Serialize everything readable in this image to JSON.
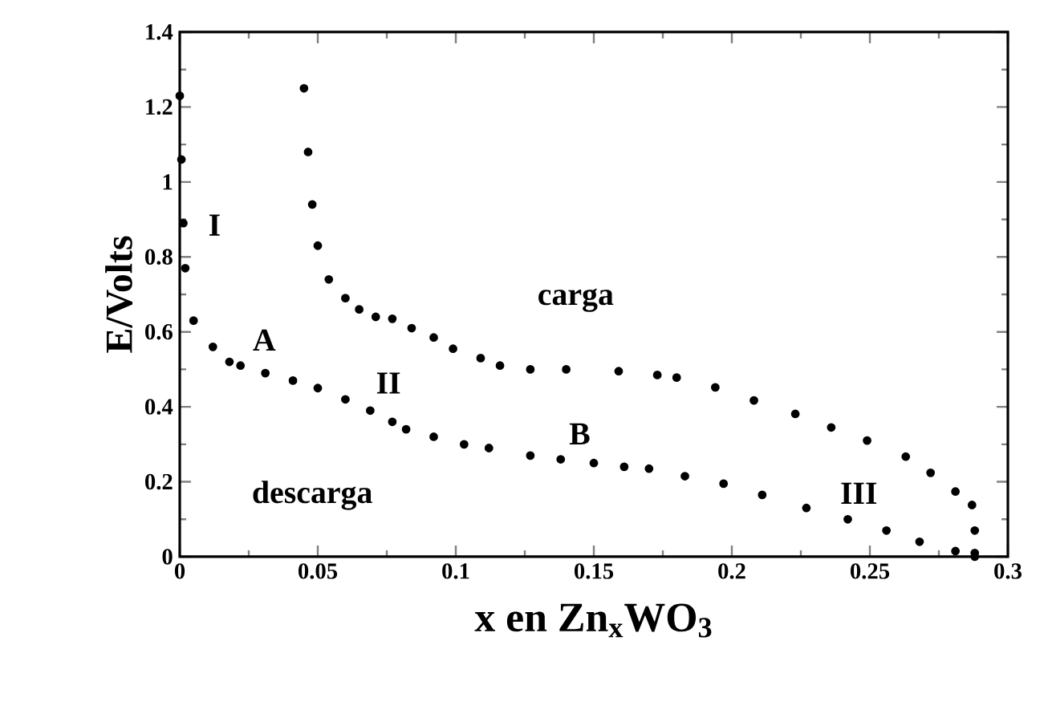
{
  "chart_data": {
    "type": "scatter",
    "xlabel": "x en Zn$_{x}$WO$_{3}$",
    "ylabel": "E/Volts",
    "xlim": [
      0,
      0.3
    ],
    "ylim": [
      0,
      1.4
    ],
    "xticks": [
      0,
      0.05,
      0.1,
      0.15,
      0.2,
      0.25,
      0.3
    ],
    "yticks": [
      0,
      0.2,
      0.4,
      0.6,
      0.8,
      1,
      1.2,
      1.4
    ],
    "marker": "circle",
    "grid": false,
    "series": [
      {
        "color": "#000000",
        "x": [
          0,
          0.0006,
          0.0013,
          0.002,
          0.005,
          0.012,
          0.018,
          0.022,
          0.031,
          0.041,
          0.05,
          0.06,
          0.069,
          0.077,
          0.082,
          0.092,
          0.103,
          0.112,
          0.127,
          0.138,
          0.15,
          0.161,
          0.17,
          0.183,
          0.197,
          0.211,
          0.227,
          0.242,
          0.256,
          0.268,
          0.281,
          0.288
        ],
        "values": [
          1.23,
          1.06,
          0.89,
          0.77,
          0.63,
          0.56,
          0.52,
          0.51,
          0.49,
          0.47,
          0.45,
          0.42,
          0.39,
          0.36,
          0.34,
          0.32,
          0.3,
          0.29,
          0.27,
          0.26,
          0.25,
          0.24,
          0.235,
          0.215,
          0.195,
          0.165,
          0.13,
          0.1,
          0.07,
          0.04,
          0.015,
          0.01
        ]
      },
      {
        "color": "#000000",
        "x": [
          0.045,
          0.0465,
          0.048,
          0.05,
          0.054,
          0.06,
          0.065,
          0.071,
          0.077,
          0.084,
          0.092,
          0.099,
          0.109,
          0.116,
          0.127,
          0.14,
          0.159,
          0.173,
          0.18,
          0.194,
          0.208,
          0.223,
          0.236,
          0.249,
          0.263,
          0.272,
          0.281,
          0.287,
          0.288,
          0.288
        ],
        "values": [
          1.25,
          1.08,
          0.94,
          0.83,
          0.74,
          0.69,
          0.66,
          0.64,
          0.635,
          0.61,
          0.585,
          0.555,
          0.53,
          0.51,
          0.5,
          0.5,
          0.495,
          0.485,
          0.478,
          0.452,
          0.417,
          0.381,
          0.345,
          0.31,
          0.267,
          0.224,
          0.174,
          0.138,
          0.07,
          0
        ]
      }
    ],
    "annotations": [
      "I",
      "A",
      "II",
      "B",
      "III",
      "carga",
      "descarga"
    ]
  }
}
